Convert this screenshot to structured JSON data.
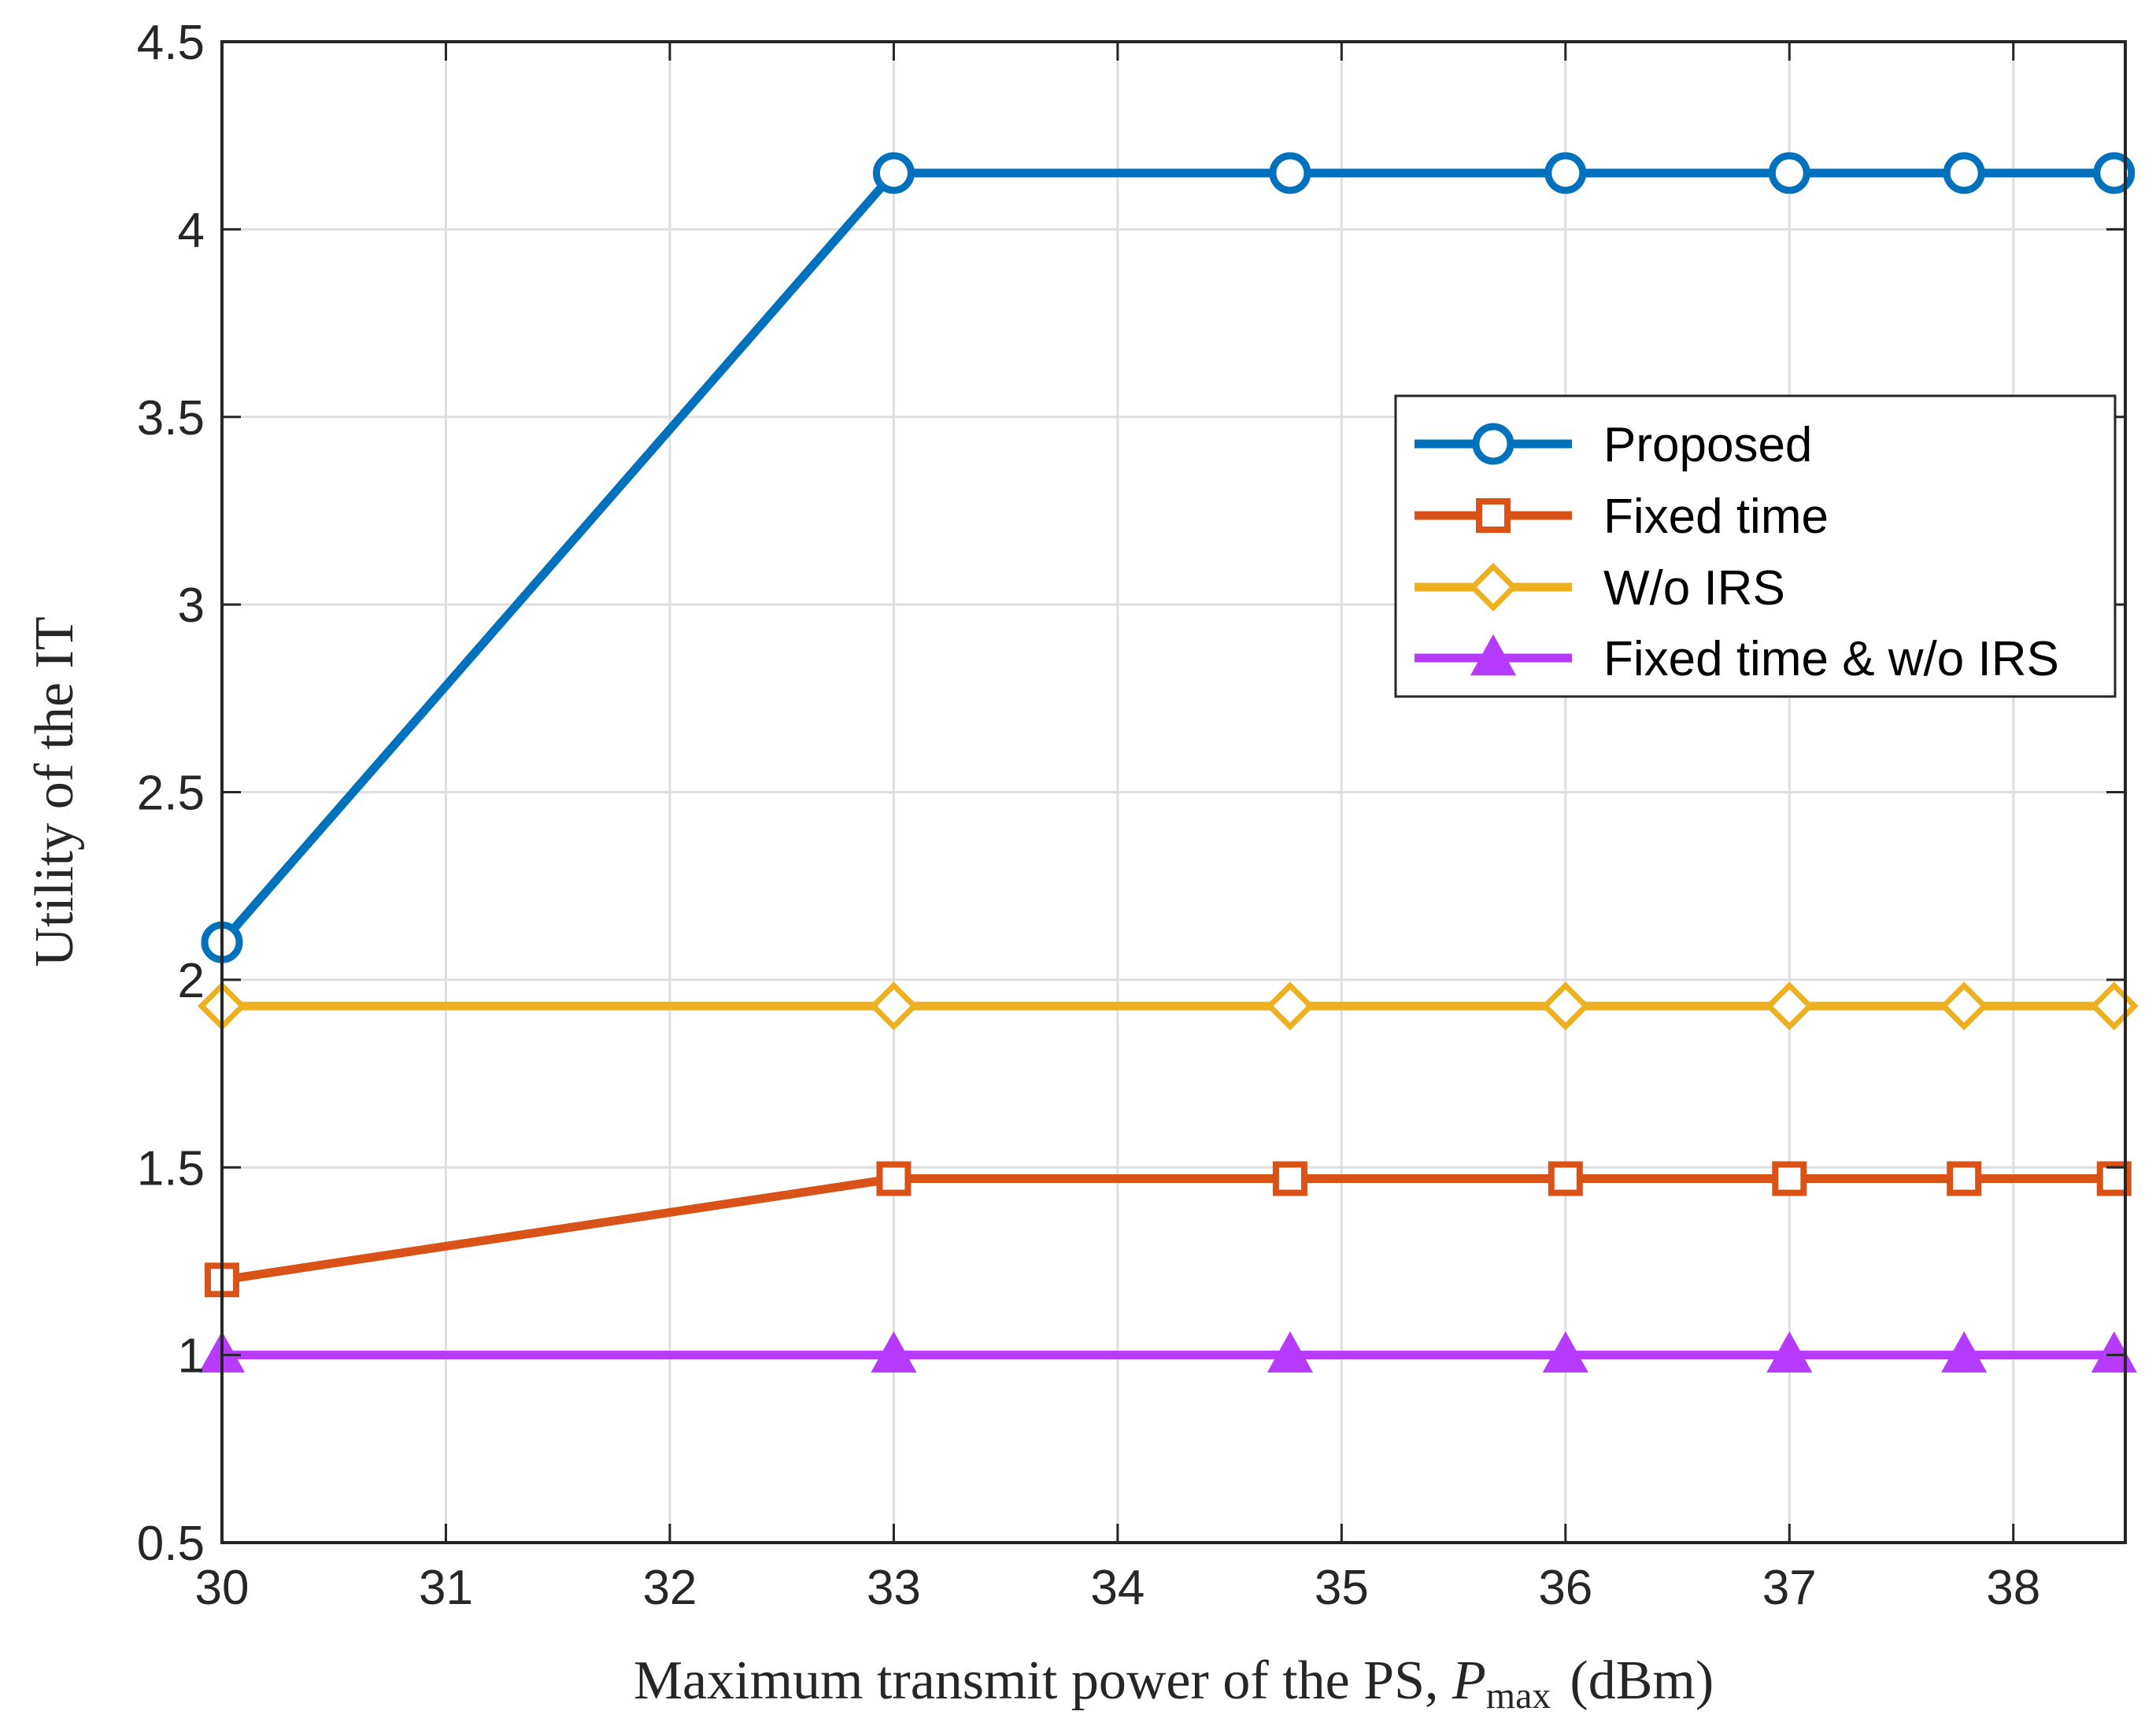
{
  "chart_data": {
    "type": "line",
    "title": "",
    "xlabel": {
      "prefix": "Maximum transmit power of the PS, ",
      "symbol": "P",
      "subscript": "max",
      "suffix": "(dBm)"
    },
    "ylabel": "Utility of the IT",
    "xlim": [
      30,
      38.5
    ],
    "ylim": [
      0.5,
      4.5
    ],
    "xticks": [
      30,
      31,
      32,
      33,
      34,
      35,
      36,
      37,
      38
    ],
    "yticks": [
      0.5,
      1,
      1.5,
      2,
      2.5,
      3,
      3.5,
      4,
      4.5
    ],
    "ytick_labels": [
      "0.5",
      "1",
      "1.5",
      "2",
      "2.5",
      "3",
      "3.5",
      "4",
      "4.5"
    ],
    "grid": true,
    "legend_position": "top-right",
    "x": [
      30,
      33,
      34.77,
      36,
      37,
      37.78,
      38.45
    ],
    "series": [
      {
        "name": "Proposed",
        "marker": "circle",
        "color": "#0072BD",
        "values": [
          2.1,
          4.15,
          4.15,
          4.15,
          4.15,
          4.15,
          4.15
        ]
      },
      {
        "name": "Fixed time",
        "marker": "square",
        "color": "#D95319",
        "values": [
          1.2,
          1.47,
          1.47,
          1.47,
          1.47,
          1.47,
          1.47
        ]
      },
      {
        "name": "W/o IRS",
        "marker": "diamond",
        "color": "#EDB120",
        "values": [
          1.93,
          1.93,
          1.93,
          1.93,
          1.93,
          1.93,
          1.93
        ]
      },
      {
        "name": "Fixed time & w/o IRS",
        "marker": "triangle",
        "color": "#B73BFF",
        "values": [
          1.0,
          1.0,
          1.0,
          1.0,
          1.0,
          1.0,
          1.0
        ]
      }
    ]
  }
}
